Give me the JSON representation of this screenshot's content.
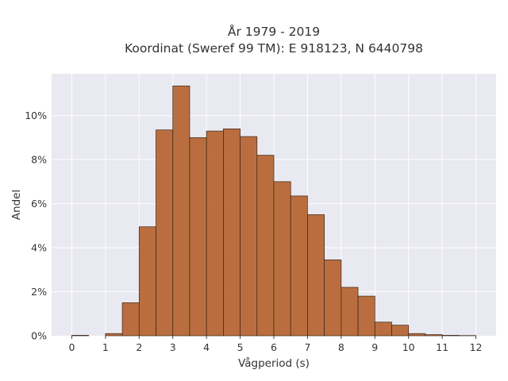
{
  "chart_data": {
    "type": "bar",
    "title_line1": "År 1979 - 2019",
    "title_line2": "Koordinat (Sweref 99 TM): E 918123, N 6440798",
    "xlabel": "Vågperiod (s)",
    "ylabel": "Andel",
    "xlim": [
      -0.6,
      12.6
    ],
    "ylim": [
      0,
      11.9
    ],
    "x_ticks": [
      0,
      1,
      2,
      3,
      4,
      5,
      6,
      7,
      8,
      9,
      10,
      11,
      12
    ],
    "x_tick_labels": [
      "0",
      "1",
      "2",
      "3",
      "4",
      "5",
      "6",
      "7",
      "8",
      "9",
      "10",
      "11",
      "12"
    ],
    "y_ticks": [
      0,
      2,
      4,
      6,
      8,
      10
    ],
    "y_tick_labels": [
      "0%",
      "2%",
      "4%",
      "6%",
      "8%",
      "10%"
    ],
    "bin_width": 0.5,
    "bins": [
      {
        "start": 0.0,
        "value": 0.02
      },
      {
        "start": 0.5,
        "value": 0.0
      },
      {
        "start": 1.0,
        "value": 0.1
      },
      {
        "start": 1.5,
        "value": 1.5
      },
      {
        "start": 2.0,
        "value": 4.95
      },
      {
        "start": 2.5,
        "value": 9.35
      },
      {
        "start": 3.0,
        "value": 11.35
      },
      {
        "start": 3.5,
        "value": 9.0
      },
      {
        "start": 4.0,
        "value": 9.3
      },
      {
        "start": 4.5,
        "value": 9.4
      },
      {
        "start": 5.0,
        "value": 9.05
      },
      {
        "start": 5.5,
        "value": 8.2
      },
      {
        "start": 6.0,
        "value": 7.0
      },
      {
        "start": 6.5,
        "value": 6.35
      },
      {
        "start": 7.0,
        "value": 5.5
      },
      {
        "start": 7.5,
        "value": 3.45
      },
      {
        "start": 8.0,
        "value": 2.2
      },
      {
        "start": 8.5,
        "value": 1.8
      },
      {
        "start": 9.0,
        "value": 0.62
      },
      {
        "start": 9.5,
        "value": 0.48
      },
      {
        "start": 10.0,
        "value": 0.1
      },
      {
        "start": 10.5,
        "value": 0.05
      },
      {
        "start": 11.0,
        "value": 0.02
      },
      {
        "start": 11.5,
        "value": 0.01
      }
    ],
    "bar_color": "#b5602b",
    "bar_edge_color": "#3a2416",
    "plot_background": "#e9e9f1",
    "grid": true,
    "legend": false
  }
}
